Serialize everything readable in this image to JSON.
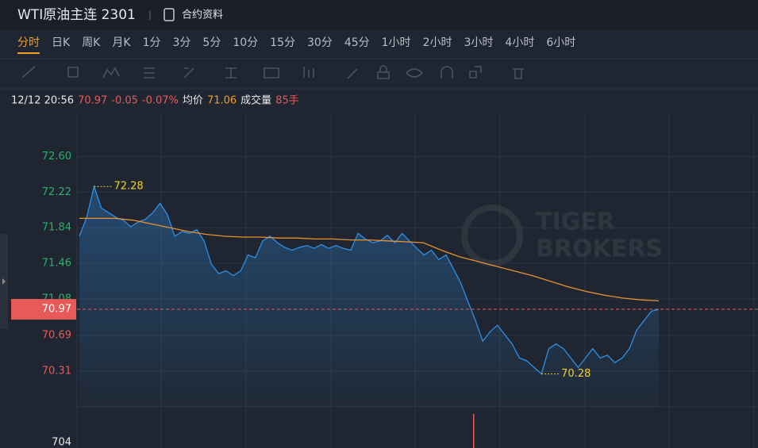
{
  "header": {
    "title": "WTI原油主连 2301",
    "link": "合约资料"
  },
  "tabs": [
    "分时",
    "日K",
    "周K",
    "月K",
    "1分",
    "3分",
    "5分",
    "10分",
    "15分",
    "30分",
    "45分",
    "1小时",
    "2小时",
    "3小时",
    "4小时",
    "6小时"
  ],
  "info": {
    "time": "12/12 20:56",
    "price": "70.97",
    "change": "-0.05",
    "change_pct": "-0.07%",
    "avg_label": "均价",
    "avg": "71.06",
    "volume_label": "成交量",
    "volume": "85手"
  },
  "chart_data": {
    "type": "line",
    "watermark": [
      "TIGER",
      "BROKERS"
    ],
    "ylim": [
      69.93,
      73.06
    ],
    "yticks": [
      {
        "value": 72.6,
        "label": "72.60"
      },
      {
        "value": 72.22,
        "label": "72.22"
      },
      {
        "value": 71.84,
        "label": "71.84"
      },
      {
        "value": 71.46,
        "label": "71.46"
      },
      {
        "value": 71.08,
        "label": "71.08"
      },
      {
        "value": 70.69,
        "label": "70.69"
      },
      {
        "value": 70.31,
        "label": "70.31"
      }
    ],
    "up_color": "#26b36b",
    "down_color": "#e85a5a",
    "prev_close": 71.02,
    "last_price": {
      "value": 70.97,
      "label": "70.97",
      "color": "#e85a5a"
    },
    "high": {
      "value": 72.28,
      "label": "72.28"
    },
    "low": {
      "value": 70.28,
      "label": "70.28"
    },
    "series": [
      {
        "name": "price",
        "color": "#2f8fe6",
        "values": [
          71.75,
          71.95,
          72.28,
          72.05,
          72.0,
          71.95,
          71.92,
          71.85,
          71.9,
          71.93,
          72.0,
          72.1,
          71.98,
          71.75,
          71.8,
          71.78,
          71.82,
          71.7,
          71.45,
          71.35,
          71.38,
          71.33,
          71.38,
          71.55,
          71.52,
          71.7,
          71.75,
          71.68,
          71.63,
          71.6,
          71.63,
          71.65,
          71.62,
          71.66,
          71.62,
          71.65,
          71.62,
          71.6,
          71.78,
          71.72,
          71.68,
          71.7,
          71.76,
          71.68,
          71.78,
          71.7,
          71.62,
          71.55,
          71.6,
          71.5,
          71.55,
          71.4,
          71.25,
          71.05,
          70.85,
          70.63,
          70.73,
          70.8,
          70.7,
          70.6,
          70.45,
          70.42,
          70.35,
          70.28,
          70.55,
          70.6,
          70.55,
          70.45,
          70.35,
          70.45,
          70.55,
          70.45,
          70.48,
          70.4,
          70.45,
          70.55,
          70.75,
          70.85,
          70.95,
          70.97
        ]
      },
      {
        "name": "average",
        "color": "#e8912f",
        "values": [
          71.94,
          71.94,
          71.94,
          71.92,
          71.88,
          71.84,
          71.8,
          71.77,
          71.75,
          71.74,
          71.74,
          71.73,
          71.73,
          71.72,
          71.72,
          71.71,
          71.71,
          71.7,
          71.69,
          71.68,
          71.6,
          71.53,
          71.48,
          71.43,
          71.38,
          71.33,
          71.27,
          71.21,
          71.16,
          71.12,
          71.09,
          71.07,
          71.06
        ]
      }
    ],
    "volume_tick": "704"
  }
}
